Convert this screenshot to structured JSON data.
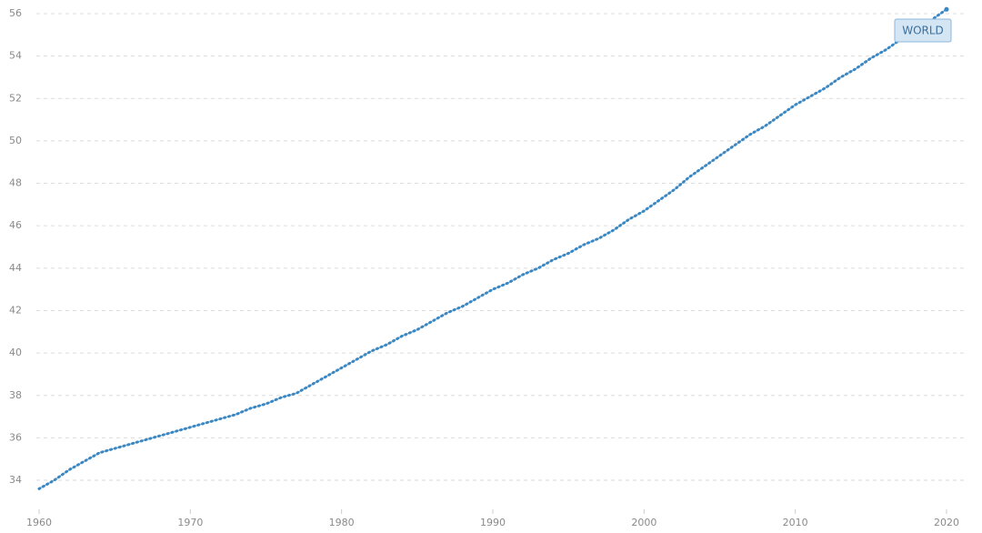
{
  "chart_data": {
    "type": "line",
    "x": [
      1960,
      1961,
      1962,
      1963,
      1964,
      1965,
      1966,
      1967,
      1968,
      1969,
      1970,
      1971,
      1972,
      1973,
      1974,
      1975,
      1976,
      1977,
      1978,
      1979,
      1980,
      1981,
      1982,
      1983,
      1984,
      1985,
      1986,
      1987,
      1988,
      1989,
      1990,
      1991,
      1992,
      1993,
      1994,
      1995,
      1996,
      1997,
      1998,
      1999,
      2000,
      2001,
      2002,
      2003,
      2004,
      2005,
      2006,
      2007,
      2008,
      2009,
      2010,
      2011,
      2012,
      2013,
      2014,
      2015,
      2016,
      2017,
      2018,
      2019,
      2020
    ],
    "series": [
      {
        "name": "WORLD",
        "color": "#3a87c2",
        "values": [
          33.6,
          34.0,
          34.5,
          34.9,
          35.3,
          35.5,
          35.7,
          35.9,
          36.1,
          36.3,
          36.5,
          36.7,
          36.9,
          37.1,
          37.4,
          37.6,
          37.9,
          38.1,
          38.5,
          38.9,
          39.3,
          39.7,
          40.1,
          40.4,
          40.8,
          41.1,
          41.5,
          41.9,
          42.2,
          42.6,
          43.0,
          43.3,
          43.7,
          44.0,
          44.4,
          44.7,
          45.1,
          45.4,
          45.8,
          46.3,
          46.7,
          47.2,
          47.7,
          48.3,
          48.8,
          49.3,
          49.8,
          50.3,
          50.7,
          51.2,
          51.7,
          52.1,
          52.5,
          53.0,
          53.4,
          53.9,
          54.3,
          54.8,
          55.3,
          55.7,
          56.2
        ]
      }
    ],
    "xlim": [
      1960,
      2020
    ],
    "xticks": [
      1960,
      1970,
      1980,
      1990,
      2000,
      2010,
      2020
    ],
    "ylim": [
      33.5,
      56.2
    ],
    "yticks": [
      34,
      36,
      38,
      40,
      42,
      44,
      46,
      48,
      50,
      52,
      54,
      56
    ],
    "grid": true
  }
}
